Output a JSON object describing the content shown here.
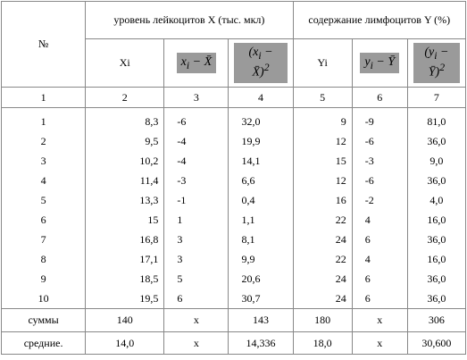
{
  "table": {
    "header": {
      "number": "№",
      "group_x": "уровень лейкоцитов X (тыс. мкл)",
      "group_y": "содержание лимфоцитов Y (%)",
      "xi": "Xi",
      "yi": "Yi",
      "fx1": {
        "pre": "x",
        "sub": "i",
        "post": " − X̄"
      },
      "fx2": {
        "pre": "(x",
        "sub": "i",
        "post": " − X̄)",
        "sup": "2"
      },
      "fy1": {
        "pre": "y",
        "sub": "i",
        "post": " − Ȳ"
      },
      "fy2": {
        "pre": "(y",
        "sub": "i",
        "post": " − Ȳ)",
        "sup": "2"
      }
    },
    "column_numbers": [
      "1",
      "2",
      "3",
      "4",
      "5",
      "6",
      "7"
    ],
    "rows": [
      [
        "1",
        "8,3",
        "-6",
        "32,0",
        "9",
        "-9",
        "81,0"
      ],
      [
        "2",
        "9,5",
        "-4",
        "19,9",
        "12",
        "-6",
        "36,0"
      ],
      [
        "3",
        "10,2",
        "-4",
        "14,1",
        "15",
        "-3",
        "9,0"
      ],
      [
        "4",
        "11,4",
        "-3",
        "6,6",
        "12",
        "-6",
        "36,0"
      ],
      [
        "5",
        "13,3",
        "-1",
        "0,4",
        "16",
        "-2",
        "4,0"
      ],
      [
        "6",
        "15",
        "1",
        "1,1",
        "22",
        "4",
        "16,0"
      ],
      [
        "7",
        "16,8",
        "3",
        "8,1",
        "24",
        "6",
        "36,0"
      ],
      [
        "8",
        "17,1",
        "3",
        "9,9",
        "22",
        "4",
        "16,0"
      ],
      [
        "9",
        "18,5",
        "5",
        "20,6",
        "24",
        "6",
        "36,0"
      ],
      [
        "10",
        "19,5",
        "6",
        "30,7",
        "24",
        "6",
        "36,0"
      ]
    ],
    "sums": [
      "суммы",
      "140",
      "x",
      "143",
      "180",
      "x",
      "306"
    ],
    "means": [
      "средние.",
      "14,0",
      "x",
      "14,336",
      "18,0",
      "x",
      "30,600"
    ]
  }
}
